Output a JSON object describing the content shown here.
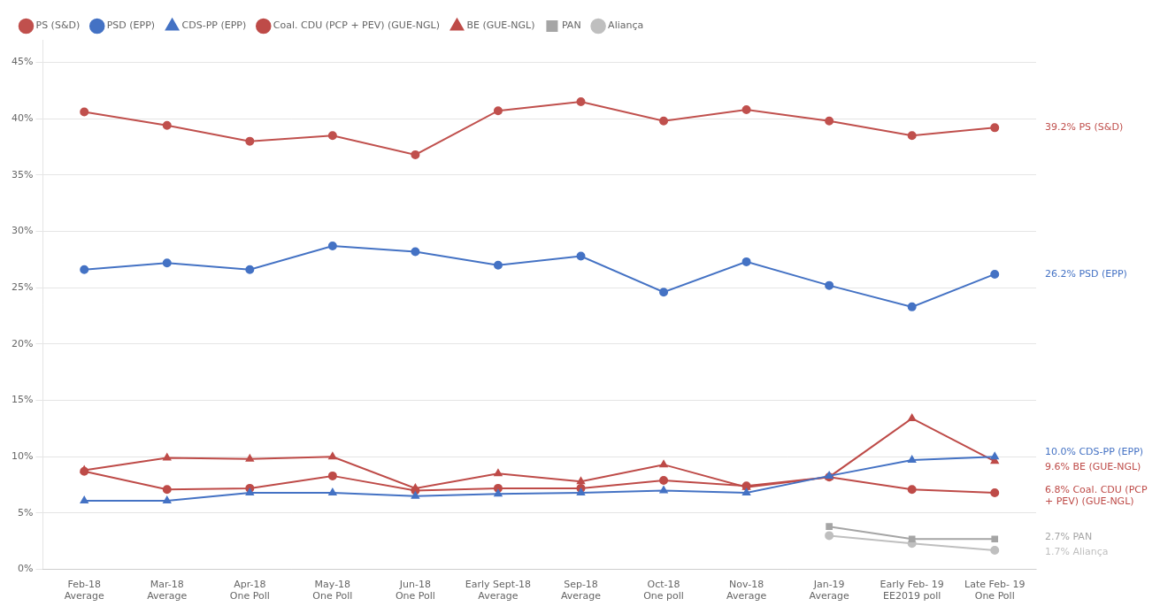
{
  "chart_data": {
    "type": "line",
    "categories": [
      "Feb-18\nAverage",
      "Mar-18\nAverage",
      "Apr-18\nOne Poll",
      "May-18\nOne Poll",
      "Jun-18\nOne Poll",
      "Early Sept-18\nAverage",
      "Sep-18\nAverage",
      "Oct-18\nOne poll",
      "Nov-18\nAverage",
      "Jan-19\nAverage",
      "Early Feb- 19\nEE2019 poll",
      "Late Feb- 19\nOne Poll"
    ],
    "series": [
      {
        "name": "PS (S&D)",
        "color": "#c0504d",
        "marker": "circle",
        "line_style": "solid",
        "values": [
          40.6,
          39.4,
          38.0,
          38.5,
          36.8,
          40.7,
          41.5,
          39.8,
          40.8,
          39.8,
          38.5,
          39.2
        ]
      },
      {
        "name": "PSD (EPP)",
        "color": "#4472c4",
        "marker": "circle",
        "line_style": "solid",
        "values": [
          26.6,
          27.2,
          26.6,
          28.7,
          28.2,
          27.0,
          27.8,
          24.6,
          27.3,
          25.2,
          23.3,
          26.2
        ]
      },
      {
        "name": "CDS-PP (EPP)",
        "color": "#4472c4",
        "marker": "triangle",
        "line_style": "solid",
        "values": [
          6.1,
          6.1,
          6.8,
          6.8,
          6.5,
          6.7,
          6.8,
          7.0,
          6.8,
          8.3,
          9.7,
          10.0
        ]
      },
      {
        "name": "Coal. CDU (PCP + PEV) (GUE-NGL)",
        "color": "#be4b48",
        "marker": "circle",
        "line_style": "solid",
        "values": [
          8.7,
          7.1,
          7.2,
          8.3,
          7.0,
          7.2,
          7.2,
          7.9,
          7.4,
          8.2,
          7.1,
          6.8
        ]
      },
      {
        "name": "BE (GUE-NGL)",
        "color": "#be4b48",
        "marker": "triangle",
        "line_style": "solid",
        "values": [
          8.8,
          9.9,
          9.8,
          10.0,
          7.2,
          8.5,
          7.8,
          9.3,
          7.3,
          8.2,
          13.4,
          9.6
        ]
      },
      {
        "name": "PAN",
        "color": "#a5a5a5",
        "marker": "square",
        "line_style": "solid",
        "values": [
          null,
          null,
          null,
          null,
          null,
          null,
          null,
          null,
          null,
          3.8,
          2.7,
          2.7
        ]
      },
      {
        "name": "Aliança",
        "color": "#bfbfbf",
        "marker": "circle",
        "line_style": "solid",
        "values": [
          null,
          null,
          null,
          null,
          null,
          null,
          null,
          null,
          null,
          3.0,
          2.3,
          1.7
        ]
      }
    ],
    "ylim": [
      0,
      47
    ],
    "yticks": [
      {
        "value": 0,
        "label": "0%"
      },
      {
        "value": 5,
        "label": "5%"
      },
      {
        "value": 10,
        "label": "10%"
      },
      {
        "value": 15,
        "label": "15%"
      },
      {
        "value": 20,
        "label": "20%"
      },
      {
        "value": 25,
        "label": "25%"
      },
      {
        "value": 30,
        "label": "30%"
      },
      {
        "value": 35,
        "label": "35%"
      },
      {
        "value": 40,
        "label": "40%"
      },
      {
        "value": 45,
        "label": "45%"
      }
    ],
    "grid": true,
    "legend": "top",
    "annotations": [
      {
        "text": "39.2% PS (S&D)",
        "y": 39.2,
        "color": "#c0504d"
      },
      {
        "text": "26.2% PSD (EPP)",
        "y": 26.2,
        "color": "#4472c4"
      },
      {
        "text": "10.0% CDS-PP (EPP)",
        "y": 10.4,
        "color": "#4472c4"
      },
      {
        "text": "9.6% BE (GUE-NGL)",
        "y": 9.1,
        "color": "#be4b48"
      },
      {
        "text": "6.8% Coal. CDU (PCP\n+ PEV) (GUE-NGL)",
        "y": 6.5,
        "color": "#be4b48"
      },
      {
        "text": "2.7% PAN",
        "y": 2.9,
        "color": "#a5a5a5"
      },
      {
        "text": "1.7% Aliança",
        "y": 1.5,
        "color": "#bfbfbf"
      }
    ]
  }
}
